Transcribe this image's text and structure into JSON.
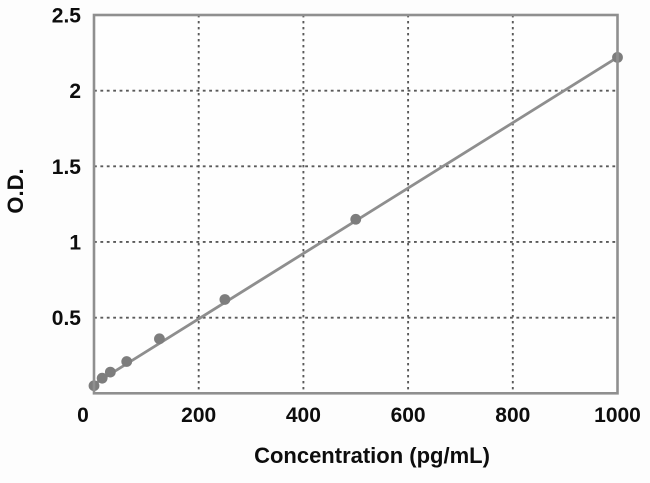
{
  "figure": {
    "background": "#fdfdfd"
  },
  "chart_data": {
    "type": "scatter",
    "subtype": "standard-curve-with-fit-line",
    "title": "",
    "xlabel": "Concentration (pg/mL)",
    "ylabel": "O.D.",
    "xlim": [
      0,
      1000
    ],
    "ylim": [
      0,
      2.5
    ],
    "grid": {
      "visible": true,
      "style": "dotted",
      "vertical_at": [
        200,
        400,
        600,
        800
      ],
      "horizontal_at": [
        0.5,
        1,
        1.5,
        2
      ]
    },
    "legend": {
      "visible": false
    },
    "x_ticks": [
      {
        "value": 0,
        "label": "0"
      },
      {
        "value": 200,
        "label": "200"
      },
      {
        "value": 400,
        "label": "400"
      },
      {
        "value": 600,
        "label": "600"
      },
      {
        "value": 800,
        "label": "800"
      },
      {
        "value": 1000,
        "label": "1000"
      }
    ],
    "y_ticks": [
      {
        "value": 0.5,
        "label": "0.5"
      },
      {
        "value": 1,
        "label": "1"
      },
      {
        "value": 1.5,
        "label": "1.5"
      },
      {
        "value": 2,
        "label": "2"
      },
      {
        "value": 2.5,
        "label": "2.5"
      }
    ],
    "series": [
      {
        "name": "standard-curve",
        "marker": "circle",
        "points": [
          {
            "x": 0,
            "y": 0.05
          },
          {
            "x": 15.6,
            "y": 0.1
          },
          {
            "x": 31.2,
            "y": 0.14
          },
          {
            "x": 62.5,
            "y": 0.21
          },
          {
            "x": 125,
            "y": 0.36
          },
          {
            "x": 250,
            "y": 0.62
          },
          {
            "x": 500,
            "y": 1.15
          },
          {
            "x": 1000,
            "y": 2.22
          }
        ],
        "fit_line": {
          "x_start": 0,
          "y_start": 0.06,
          "x_end": 1000,
          "y_end": 2.22
        }
      }
    ],
    "colors": {
      "marker": "#7d7d7d",
      "line": "#8e8e8e",
      "grid": "#5a5a5a",
      "frame": "#8f8f8f",
      "text": "#0d0d0d",
      "plot_background": "#fefefe"
    }
  }
}
